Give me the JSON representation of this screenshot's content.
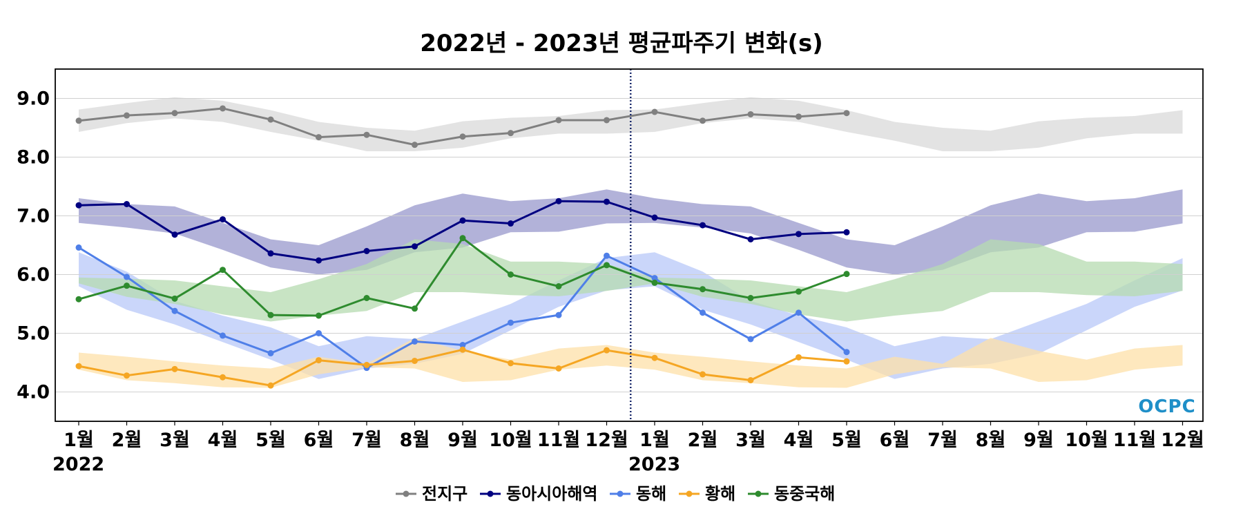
{
  "chart_data": {
    "type": "line",
    "title": "2022년 - 2023년 평균파주기 변화(s)",
    "xlabel": "",
    "ylabel": "",
    "ylim": [
      3.5,
      9.5
    ],
    "yticks": [
      "4.0",
      "5.0",
      "6.0",
      "7.0",
      "8.0",
      "9.0"
    ],
    "ytick_values": [
      4.0,
      5.0,
      6.0,
      7.0,
      8.0,
      9.0
    ],
    "x_tick_labels": [
      "1월",
      "2월",
      "3월",
      "4월",
      "5월",
      "6월",
      "7월",
      "8월",
      "9월",
      "10월",
      "11월",
      "12월",
      "1월",
      "2월",
      "3월",
      "4월",
      "5월",
      "6월",
      "7월",
      "8월",
      "9월",
      "10월",
      "11월",
      "12월"
    ],
    "year_labels": [
      {
        "text": "2022",
        "month_index": 0
      },
      {
        "text": "2023",
        "month_index": 12
      }
    ],
    "year_divider_after_month_index": 11.5,
    "grid": "horizontal",
    "legend_position": "bottom-center",
    "series": [
      {
        "name": "전지구",
        "color": "#808080",
        "band_color": "#d9d9d9",
        "values": [
          8.62,
          8.71,
          8.75,
          8.83,
          8.64,
          8.34,
          8.38,
          8.21,
          8.35,
          8.41,
          8.63,
          8.63,
          8.77,
          8.62,
          8.73,
          8.69,
          8.75
        ],
        "band_upper": [
          8.81,
          8.92,
          9.02,
          8.96,
          8.8,
          8.6,
          8.5,
          8.45,
          8.61,
          8.67,
          8.7,
          8.8
        ],
        "band_lower": [
          8.43,
          8.58,
          8.66,
          8.6,
          8.43,
          8.28,
          8.1,
          8.1,
          8.16,
          8.32,
          8.4,
          8.4
        ]
      },
      {
        "name": "동아시아해역",
        "color": "#000080",
        "band_color": "#9898cc",
        "values": [
          7.18,
          7.2,
          6.68,
          6.94,
          6.36,
          6.24,
          6.4,
          6.48,
          6.92,
          6.87,
          7.25,
          7.24,
          6.97,
          6.84,
          6.6,
          6.69,
          6.72
        ],
        "band_upper": [
          7.3,
          7.2,
          7.16,
          6.88,
          6.6,
          6.5,
          6.82,
          7.18,
          7.38,
          7.25,
          7.3,
          7.45
        ],
        "band_lower": [
          6.88,
          6.8,
          6.7,
          6.42,
          6.12,
          6.0,
          6.08,
          6.38,
          6.46,
          6.72,
          6.73,
          6.87
        ]
      },
      {
        "name": "동해",
        "color": "#4f7fe8",
        "band_color": "#b8c8f8",
        "values": [
          6.46,
          5.96,
          5.38,
          4.96,
          4.66,
          5.0,
          4.41,
          4.86,
          4.8,
          5.18,
          5.31,
          6.32,
          5.94,
          5.35,
          4.9,
          5.35,
          4.68
        ],
        "band_upper": [
          6.38,
          6.05,
          5.55,
          5.3,
          5.1,
          4.78,
          4.95,
          4.9,
          5.2,
          5.5,
          5.9,
          6.28
        ],
        "band_lower": [
          5.8,
          5.4,
          5.15,
          4.85,
          4.55,
          4.22,
          4.4,
          4.48,
          4.65,
          5.05,
          5.45,
          5.73
        ]
      },
      {
        "name": "황해",
        "color": "#f5a623",
        "band_color": "#fde0a8",
        "values": [
          4.44,
          4.28,
          4.39,
          4.25,
          4.11,
          4.54,
          4.46,
          4.53,
          4.72,
          4.49,
          4.4,
          4.71,
          4.58,
          4.3,
          4.2,
          4.59,
          4.52
        ],
        "band_upper": [
          4.67,
          4.6,
          4.52,
          4.45,
          4.4,
          4.6,
          4.48,
          4.92,
          4.7,
          4.55,
          4.74,
          4.8
        ],
        "band_lower": [
          4.38,
          4.2,
          4.15,
          4.08,
          4.07,
          4.3,
          4.42,
          4.4,
          4.17,
          4.2,
          4.38,
          4.45
        ]
      },
      {
        "name": "동중국해",
        "color": "#2e8b2e",
        "band_color": "#b5dbb0",
        "values": [
          5.58,
          5.81,
          5.59,
          6.08,
          5.31,
          5.3,
          5.6,
          5.42,
          6.62,
          6.0,
          5.8,
          6.16,
          5.86,
          5.75,
          5.6,
          5.71,
          6.01
        ],
        "band_upper": [
          5.95,
          5.93,
          5.9,
          5.8,
          5.7,
          5.92,
          6.18,
          6.6,
          6.52,
          6.22,
          6.22,
          6.18
        ],
        "band_lower": [
          5.85,
          5.62,
          5.5,
          5.32,
          5.2,
          5.3,
          5.38,
          5.7,
          5.7,
          5.65,
          5.63,
          5.72
        ]
      }
    ]
  },
  "logo": {
    "text": "OCPC",
    "color": "#1f8fc8"
  }
}
